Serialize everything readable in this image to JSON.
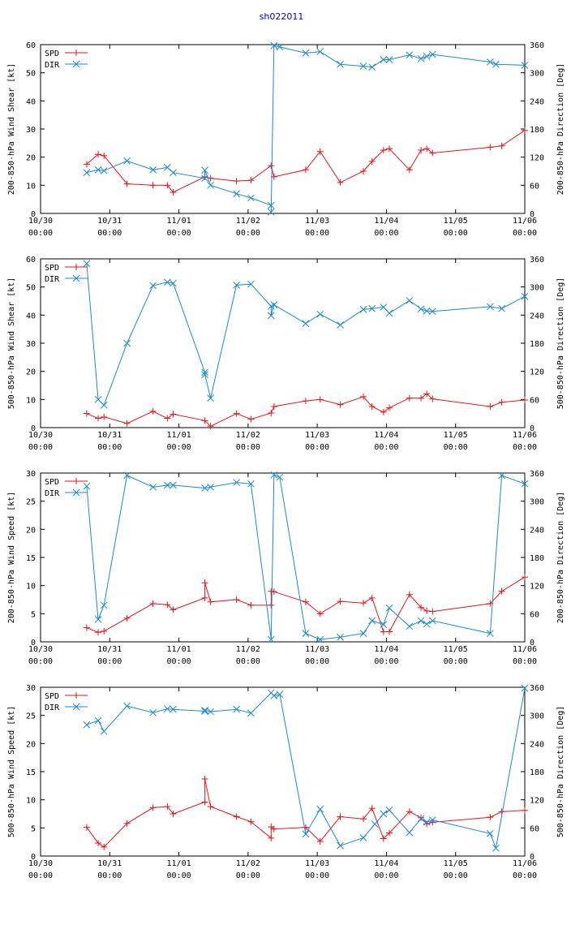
{
  "figure_title": "sh022011",
  "colors": {
    "spd": "#e8161c",
    "dir": "#1a8ad4",
    "title": "#0000cc"
  },
  "x_tick_labels": [
    [
      "10/30",
      "00:00"
    ],
    [
      "10/31",
      "00:00"
    ],
    [
      "11/01",
      "00:00"
    ],
    [
      "11/02",
      "00:00"
    ],
    [
      "11/03",
      "00:00"
    ],
    [
      "11/04",
      "00:00"
    ],
    [
      "11/05",
      "00:00"
    ],
    [
      "11/06",
      "00:00"
    ]
  ],
  "chart_data": [
    {
      "type": "line",
      "ylabel": "200-850-hPa Wind Shear [kt]",
      "y2label": "200-850-hPa Direction [Deg]",
      "xlabel": "",
      "xlim": [
        0,
        7
      ],
      "ylim": [
        0,
        60
      ],
      "y2lim": [
        0,
        360
      ],
      "yticks": [
        0,
        10,
        20,
        30,
        40,
        50,
        60
      ],
      "y2ticks": [
        0,
        60,
        120,
        180,
        240,
        300,
        360
      ],
      "legend_position": "top-left",
      "series": [
        {
          "name": "SPD",
          "axis": "left",
          "marker": "plus",
          "x": [
            0.667,
            0.833,
            0.917,
            1.25,
            1.625,
            1.833,
            1.917,
            2.375,
            2.458,
            2.833,
            3.042,
            3.333,
            3.375,
            3.833,
            4.042,
            4.333,
            4.667,
            4.792,
            4.958,
            5.042,
            5.333,
            5.5,
            5.583,
            5.667,
            6.5,
            6.667,
            7.0
          ],
          "values": [
            17.5,
            21.0,
            20.5,
            10.5,
            10.0,
            10.0,
            7.5,
            13.0,
            12.5,
            11.5,
            11.8,
            17.0,
            13.0,
            15.5,
            22.0,
            11.0,
            15.0,
            18.5,
            22.5,
            23.0,
            15.5,
            22.5,
            23.0,
            21.5,
            23.5,
            24.0,
            29.5
          ]
        },
        {
          "name": "DIR",
          "axis": "right",
          "marker": "cross",
          "x": [
            0.667,
            0.833,
            0.917,
            1.25,
            1.625,
            1.833,
            1.917,
            2.375,
            2.375,
            2.458,
            2.833,
            3.042,
            3.333,
            3.333,
            3.375,
            3.458,
            3.833,
            4.042,
            4.333,
            4.667,
            4.792,
            4.958,
            5.042,
            5.333,
            5.5,
            5.583,
            5.667,
            6.5,
            6.583,
            7.0
          ],
          "values": [
            87,
            93,
            91,
            112,
            93,
            98,
            87,
            75,
            92,
            60,
            42,
            33,
            17,
            3,
            358,
            355,
            342,
            345,
            318,
            314,
            312,
            328,
            328,
            338,
            330,
            335,
            339,
            323,
            318,
            316
          ]
        }
      ]
    },
    {
      "type": "line",
      "ylabel": "500-850-hPa Wind Shear [kt]",
      "y2label": "500-850-hPa Direction [Deg]",
      "xlabel": "",
      "xlim": [
        0,
        7
      ],
      "ylim": [
        0,
        60
      ],
      "y2lim": [
        0,
        360
      ],
      "yticks": [
        0,
        10,
        20,
        30,
        40,
        50,
        60
      ],
      "y2ticks": [
        0,
        60,
        120,
        180,
        240,
        300,
        360
      ],
      "legend_position": "top-left",
      "series": [
        {
          "name": "SPD",
          "axis": "left",
          "marker": "plus",
          "x": [
            0.667,
            0.833,
            0.917,
            1.25,
            1.625,
            1.833,
            1.917,
            2.375,
            2.458,
            2.833,
            3.042,
            3.333,
            3.375,
            3.833,
            4.042,
            4.333,
            4.667,
            4.792,
            4.958,
            5.042,
            5.333,
            5.5,
            5.583,
            5.667,
            6.5,
            6.667,
            7.0
          ],
          "values": [
            5.0,
            3.3,
            3.8,
            1.5,
            5.8,
            3.3,
            4.8,
            2.5,
            0.5,
            5.0,
            3.0,
            5.2,
            7.5,
            9.5,
            10.0,
            8.2,
            11.0,
            7.5,
            5.5,
            7.0,
            10.5,
            10.5,
            12.0,
            10.2,
            7.5,
            9.0,
            9.8
          ]
        },
        {
          "name": "DIR",
          "axis": "right",
          "marker": "cross",
          "x": [
            0.667,
            0.833,
            0.917,
            1.25,
            1.625,
            1.833,
            1.917,
            2.375,
            2.375,
            2.458,
            2.833,
            3.042,
            3.333,
            3.333,
            3.375,
            3.833,
            4.042,
            4.333,
            4.667,
            4.792,
            4.958,
            5.042,
            5.333,
            5.5,
            5.583,
            5.667,
            6.5,
            6.667,
            7.0
          ],
          "values": [
            350,
            60,
            48,
            180,
            303,
            310,
            308,
            118,
            113,
            63,
            304,
            306,
            259,
            239,
            262,
            222,
            242,
            219,
            252,
            254,
            257,
            244,
            271,
            253,
            249,
            248,
            258,
            254,
            280
          ]
        }
      ]
    },
    {
      "type": "line",
      "ylabel": "200-850-hPa Wind Speed [kt]",
      "y2label": "200-850-hPa Direction [Deg]",
      "xlabel": "",
      "xlim": [
        0,
        7
      ],
      "ylim": [
        0,
        30
      ],
      "y2lim": [
        0,
        360
      ],
      "yticks": [
        0,
        5,
        10,
        15,
        20,
        25,
        30
      ],
      "y2ticks": [
        0,
        60,
        120,
        180,
        240,
        300,
        360
      ],
      "legend_position": "top-left",
      "series": [
        {
          "name": "SPD",
          "axis": "left",
          "marker": "plus",
          "x": [
            0.667,
            0.833,
            0.917,
            1.25,
            1.625,
            1.833,
            1.917,
            2.375,
            2.375,
            2.458,
            2.833,
            3.042,
            3.333,
            3.333,
            3.375,
            3.833,
            4.042,
            4.333,
            4.667,
            4.792,
            4.958,
            5.042,
            5.333,
            5.5,
            5.583,
            5.667,
            6.5,
            6.667,
            7.0
          ],
          "values": [
            2.5,
            1.7,
            1.9,
            4.2,
            6.8,
            6.6,
            5.7,
            7.8,
            10.5,
            7.1,
            7.5,
            6.5,
            6.5,
            9.0,
            8.9,
            7.1,
            5.0,
            7.2,
            6.9,
            7.8,
            1.8,
            1.8,
            8.4,
            6.1,
            5.5,
            5.4,
            6.8,
            9.0,
            11.5
          ]
        },
        {
          "name": "DIR",
          "axis": "right",
          "marker": "cross",
          "x": [
            0.667,
            0.833,
            0.917,
            1.25,
            1.625,
            1.833,
            1.917,
            2.375,
            2.458,
            2.833,
            3.042,
            3.333,
            3.375,
            3.458,
            3.833,
            4.042,
            4.333,
            4.667,
            4.792,
            4.958,
            5.042,
            5.333,
            5.5,
            5.583,
            5.667,
            6.5,
            6.667,
            7.0
          ],
          "values": [
            332,
            48,
            78,
            355,
            330,
            334,
            334,
            328,
            330,
            340,
            337,
            5,
            356,
            351,
            18,
            5,
            10,
            18,
            45,
            37,
            72,
            33,
            45,
            38,
            45,
            18,
            355,
            337
          ]
        }
      ]
    },
    {
      "type": "line",
      "ylabel": "500-850-hPa Wind Speed [kt]",
      "y2label": "500-850-hPa Direction [Deg]",
      "xlabel": "",
      "xlim": [
        0,
        7
      ],
      "ylim": [
        0,
        30
      ],
      "y2lim": [
        0,
        360
      ],
      "yticks": [
        0,
        5,
        10,
        15,
        20,
        25,
        30
      ],
      "y2ticks": [
        0,
        60,
        120,
        180,
        240,
        300,
        360
      ],
      "legend_position": "top-left",
      "series": [
        {
          "name": "SPD",
          "axis": "left",
          "marker": "plus",
          "x": [
            0.667,
            0.833,
            0.917,
            1.25,
            1.625,
            1.833,
            1.917,
            2.375,
            2.375,
            2.458,
            2.833,
            3.042,
            3.333,
            3.333,
            3.375,
            3.833,
            4.042,
            4.333,
            4.667,
            4.792,
            4.958,
            5.042,
            5.333,
            5.5,
            5.583,
            5.667,
            6.5,
            6.667,
            7.0
          ],
          "values": [
            5.1,
            2.3,
            1.6,
            5.8,
            8.6,
            8.8,
            7.5,
            9.6,
            13.7,
            8.8,
            7.0,
            6.1,
            3.2,
            5.2,
            4.8,
            5.1,
            2.6,
            7.0,
            6.6,
            8.5,
            3.1,
            4.1,
            7.9,
            6.8,
            5.7,
            6.0,
            6.9,
            7.9,
            8.1
          ]
        },
        {
          "name": "DIR",
          "axis": "right",
          "marker": "cross",
          "x": [
            0.667,
            0.833,
            0.917,
            1.25,
            1.625,
            1.833,
            1.917,
            2.375,
            2.375,
            2.458,
            2.833,
            3.042,
            3.333,
            3.375,
            3.458,
            3.833,
            4.042,
            4.333,
            4.667,
            4.833,
            4.958,
            5.042,
            5.333,
            5.5,
            5.583,
            5.667,
            6.5,
            6.583,
            7.0
          ],
          "values": [
            280,
            289,
            266,
            320,
            306,
            314,
            313,
            309,
            311,
            308,
            313,
            305,
            348,
            342,
            345,
            47,
            100,
            22,
            39,
            68,
            90,
            98,
            50,
            80,
            72,
            77,
            48,
            17,
            358
          ]
        }
      ]
    }
  ]
}
